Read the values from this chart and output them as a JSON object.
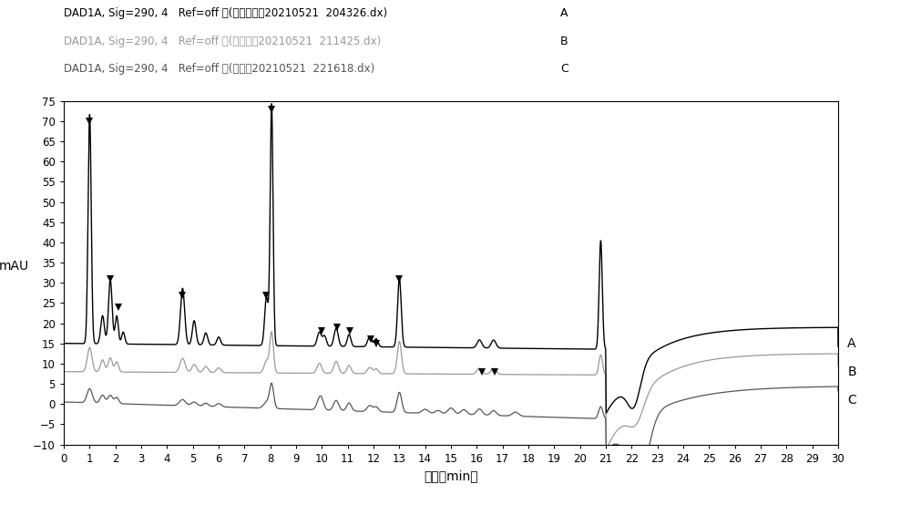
{
  "legend_lines": [
    {
      "label": "DAD1A, Sig=290, 4   Ref=off ，(系统适用性20210521  204326.dx)",
      "letter": "A",
      "color": "#000000",
      "lw": 1.0
    },
    {
      "label": "DAD1A, Sig=290, 4   Ref=off ，(空白辅斖20210521  211425.dx)",
      "letter": "B",
      "color": "#999999",
      "lw": 0.9
    },
    {
      "label": "DAD1A, Sig=290, 4   Ref=off ，(供试品20210521  221618.dx)",
      "letter": "C",
      "color": "#555555",
      "lw": 0.9
    }
  ],
  "xlabel": "时间［min］",
  "ylabel": "mAU",
  "xlim": [
    0,
    30
  ],
  "ylim": [
    -10,
    75
  ],
  "yticks": [
    -10,
    -5,
    0,
    5,
    10,
    15,
    20,
    25,
    30,
    35,
    40,
    45,
    50,
    55,
    60,
    65,
    70,
    75
  ],
  "xticks": [
    0,
    1,
    2,
    3,
    4,
    5,
    6,
    7,
    8,
    9,
    10,
    11,
    12,
    13,
    14,
    15,
    16,
    17,
    18,
    19,
    20,
    21,
    22,
    23,
    24,
    25,
    26,
    27,
    28,
    29,
    30
  ],
  "background_color": "#ffffff",
  "marker_x": [
    1.0,
    1.8,
    2.1,
    4.6,
    7.85,
    8.05,
    10.0,
    10.6,
    11.1,
    11.9,
    12.1,
    13.0,
    16.2,
    16.7
  ],
  "marker_y": [
    70,
    31,
    24,
    27,
    27,
    73,
    18,
    19,
    18,
    16,
    15,
    31,
    8,
    8
  ],
  "right_labels": [
    {
      "text": "A",
      "y_data": 15.0
    },
    {
      "text": "B",
      "y_data": 8.0
    },
    {
      "text": "C",
      "y_data": 1.0
    }
  ]
}
